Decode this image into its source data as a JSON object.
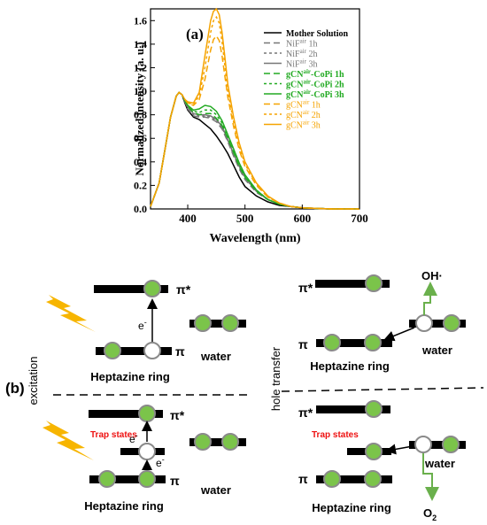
{
  "chart_data": {
    "type": "line",
    "panel_label": "(a)",
    "xlabel": "Wavelength (nm)",
    "ylabel": "Normalized intensity (a. u.)",
    "xlim": [
      335,
      700
    ],
    "ylim": [
      0,
      1.7
    ],
    "x_ticks": [
      400,
      500,
      600,
      700
    ],
    "y_ticks": [
      0.0,
      0.2,
      0.4,
      0.6,
      0.8,
      1.0,
      1.2,
      1.4,
      1.6
    ],
    "x_tick_labels": [
      "400",
      "500",
      "600",
      "700"
    ],
    "y_tick_labels": [
      "0.0",
      "0.2",
      "0.4",
      "0.6",
      "0.8",
      "1.0",
      "1.2",
      "1.4",
      "1.6"
    ],
    "grid": false,
    "legend_position": "top-right",
    "series": [
      {
        "name": "Mother Solution",
        "legend": {
          "main": "Mother Solution",
          "sup": "",
          "tail": ""
        },
        "color": "#000000",
        "dash": "solid",
        "x": [
          335,
          350,
          360,
          370,
          380,
          385,
          390,
          395,
          400,
          410,
          420,
          430,
          440,
          450,
          460,
          470,
          480,
          490,
          500,
          520,
          540,
          560,
          580,
          600,
          620,
          650,
          700
        ],
        "y": [
          0.02,
          0.22,
          0.5,
          0.78,
          0.96,
          0.99,
          0.97,
          0.9,
          0.84,
          0.78,
          0.76,
          0.72,
          0.68,
          0.62,
          0.55,
          0.47,
          0.37,
          0.27,
          0.19,
          0.11,
          0.06,
          0.03,
          0.02,
          0.01,
          0.005,
          0.0,
          0.0
        ]
      },
      {
        "name": "NiF air 1h",
        "legend": {
          "main": "NiF",
          "sup": "air",
          "tail": " 1h"
        },
        "color": "#777777",
        "dash": "long",
        "x": [
          335,
          350,
          360,
          370,
          380,
          385,
          390,
          395,
          400,
          410,
          420,
          430,
          440,
          450,
          460,
          470,
          480,
          490,
          500,
          520,
          540,
          560,
          580,
          600,
          620,
          650,
          700
        ],
        "y": [
          0.02,
          0.22,
          0.5,
          0.78,
          0.96,
          0.99,
          0.97,
          0.91,
          0.85,
          0.79,
          0.78,
          0.78,
          0.77,
          0.74,
          0.68,
          0.57,
          0.45,
          0.34,
          0.25,
          0.14,
          0.08,
          0.04,
          0.02,
          0.01,
          0.005,
          0.0,
          0.0
        ]
      },
      {
        "name": "NiF air 2h",
        "legend": {
          "main": "NiF",
          "sup": "air",
          "tail": " 2h"
        },
        "color": "#777777",
        "dash": "short",
        "x": [
          335,
          350,
          360,
          370,
          380,
          385,
          390,
          395,
          400,
          410,
          420,
          430,
          440,
          450,
          460,
          470,
          480,
          490,
          500,
          520,
          540,
          560,
          580,
          600,
          620,
          650,
          700
        ],
        "y": [
          0.02,
          0.22,
          0.5,
          0.78,
          0.96,
          0.99,
          0.97,
          0.91,
          0.86,
          0.8,
          0.79,
          0.79,
          0.78,
          0.75,
          0.69,
          0.58,
          0.46,
          0.35,
          0.26,
          0.15,
          0.08,
          0.04,
          0.02,
          0.01,
          0.005,
          0.0,
          0.0
        ]
      },
      {
        "name": "NiF air 3h",
        "legend": {
          "main": "NiF",
          "sup": "air",
          "tail": " 3h"
        },
        "color": "#777777",
        "dash": "solid",
        "x": [
          335,
          350,
          360,
          370,
          380,
          385,
          390,
          395,
          400,
          410,
          420,
          430,
          440,
          450,
          460,
          470,
          480,
          490,
          500,
          520,
          540,
          560,
          580,
          600,
          620,
          650,
          700
        ],
        "y": [
          0.02,
          0.22,
          0.5,
          0.78,
          0.96,
          0.99,
          0.97,
          0.92,
          0.87,
          0.81,
          0.8,
          0.8,
          0.79,
          0.76,
          0.7,
          0.59,
          0.47,
          0.36,
          0.27,
          0.15,
          0.08,
          0.04,
          0.02,
          0.01,
          0.005,
          0.0,
          0.0
        ]
      },
      {
        "name": "gCN air -CoPi 1h",
        "legend": {
          "main": "gCN",
          "sup": "air",
          "tail": "-CoPi 1h"
        },
        "color": "#22aa22",
        "dash": "long",
        "x": [
          335,
          350,
          360,
          370,
          380,
          385,
          390,
          395,
          400,
          410,
          420,
          430,
          440,
          450,
          460,
          470,
          480,
          490,
          500,
          520,
          540,
          560,
          580,
          600,
          620,
          650,
          700
        ],
        "y": [
          0.02,
          0.22,
          0.5,
          0.78,
          0.96,
          0.99,
          0.97,
          0.92,
          0.87,
          0.82,
          0.8,
          0.81,
          0.81,
          0.77,
          0.71,
          0.6,
          0.48,
          0.36,
          0.27,
          0.15,
          0.08,
          0.04,
          0.02,
          0.01,
          0.005,
          0.0,
          0.0
        ]
      },
      {
        "name": "gCN air -CoPi 2h",
        "legend": {
          "main": "gCN",
          "sup": "air",
          "tail": "-CoPi 2h"
        },
        "color": "#22aa22",
        "dash": "short",
        "x": [
          335,
          350,
          360,
          370,
          380,
          385,
          390,
          395,
          400,
          410,
          420,
          430,
          440,
          450,
          460,
          470,
          480,
          490,
          500,
          520,
          540,
          560,
          580,
          600,
          620,
          650,
          700
        ],
        "y": [
          0.02,
          0.22,
          0.5,
          0.78,
          0.96,
          0.99,
          0.97,
          0.92,
          0.88,
          0.83,
          0.82,
          0.84,
          0.84,
          0.8,
          0.73,
          0.62,
          0.5,
          0.38,
          0.28,
          0.16,
          0.08,
          0.04,
          0.02,
          0.01,
          0.005,
          0.0,
          0.0
        ]
      },
      {
        "name": "gCN air -CoPi 3h",
        "legend": {
          "main": "gCN",
          "sup": "air",
          "tail": "-CoPi 3h"
        },
        "color": "#22aa22",
        "dash": "solid",
        "x": [
          335,
          350,
          360,
          370,
          380,
          385,
          390,
          395,
          400,
          410,
          420,
          430,
          440,
          450,
          460,
          470,
          480,
          490,
          500,
          520,
          540,
          560,
          580,
          600,
          620,
          650,
          700
        ],
        "y": [
          0.02,
          0.22,
          0.5,
          0.78,
          0.96,
          0.99,
          0.97,
          0.92,
          0.88,
          0.84,
          0.85,
          0.88,
          0.87,
          0.83,
          0.75,
          0.63,
          0.51,
          0.39,
          0.29,
          0.16,
          0.08,
          0.04,
          0.02,
          0.01,
          0.005,
          0.0,
          0.0
        ]
      },
      {
        "name": "gCN air 1h",
        "legend": {
          "main": "gCN",
          "sup": "air",
          "tail": " 1h"
        },
        "color": "#f5a300",
        "dash": "long",
        "x": [
          335,
          350,
          360,
          370,
          380,
          385,
          390,
          395,
          400,
          410,
          420,
          430,
          440,
          445,
          450,
          455,
          460,
          465,
          470,
          480,
          490,
          500,
          520,
          540,
          560,
          580,
          600,
          620,
          650,
          700
        ],
        "y": [
          0.02,
          0.22,
          0.5,
          0.78,
          0.96,
          0.99,
          0.97,
          0.93,
          0.9,
          0.88,
          0.93,
          1.1,
          1.35,
          1.44,
          1.47,
          1.43,
          1.3,
          1.12,
          0.95,
          0.7,
          0.5,
          0.36,
          0.2,
          0.1,
          0.05,
          0.02,
          0.01,
          0.005,
          0.0,
          0.0
        ]
      },
      {
        "name": "gCN air 2h",
        "legend": {
          "main": "gCN",
          "sup": "air",
          "tail": " 2h"
        },
        "color": "#f5a300",
        "dash": "short",
        "x": [
          335,
          350,
          360,
          370,
          380,
          385,
          390,
          395,
          400,
          410,
          420,
          430,
          440,
          445,
          450,
          455,
          460,
          465,
          470,
          480,
          490,
          500,
          520,
          540,
          560,
          580,
          600,
          620,
          650,
          700
        ],
        "y": [
          0.02,
          0.22,
          0.5,
          0.78,
          0.96,
          0.99,
          0.97,
          0.93,
          0.9,
          0.89,
          0.96,
          1.2,
          1.5,
          1.6,
          1.63,
          1.58,
          1.42,
          1.21,
          1.0,
          0.74,
          0.53,
          0.38,
          0.21,
          0.1,
          0.05,
          0.02,
          0.01,
          0.005,
          0.0,
          0.0
        ]
      },
      {
        "name": "gCN air 3h",
        "legend": {
          "main": "gCN",
          "sup": "air",
          "tail": " 3h"
        },
        "color": "#f5a300",
        "dash": "solid",
        "x": [
          335,
          350,
          360,
          370,
          380,
          385,
          390,
          395,
          400,
          410,
          420,
          430,
          440,
          445,
          450,
          455,
          460,
          465,
          470,
          480,
          490,
          500,
          520,
          540,
          560,
          580,
          600,
          620,
          650,
          700
        ],
        "y": [
          0.02,
          0.22,
          0.5,
          0.78,
          0.96,
          0.99,
          0.97,
          0.93,
          0.91,
          0.9,
          0.99,
          1.3,
          1.6,
          1.68,
          1.7,
          1.65,
          1.5,
          1.28,
          1.06,
          0.78,
          0.56,
          0.4,
          0.22,
          0.11,
          0.05,
          0.02,
          0.01,
          0.005,
          0.0,
          0.0
        ]
      }
    ]
  },
  "diagram": {
    "panel_label": "(b)",
    "excitation_label": "excitation",
    "hole_transfer_label": "hole transfer",
    "pi_star": "π*",
    "pi": "π",
    "water": "water",
    "heptazine_ring": "Heptazine ring",
    "trap_states": "Trap states",
    "electron": "e",
    "electron_sup": "-",
    "oh_radical": "OH·",
    "o2_main": "O",
    "o2_sub": "2"
  },
  "colors": {
    "green_fill": "#7bc44a",
    "circle_stroke": "#8a8a8a",
    "lightning": "#f7b500",
    "trap_red": "#ee1111",
    "arrow_green": "#6ab04c"
  }
}
